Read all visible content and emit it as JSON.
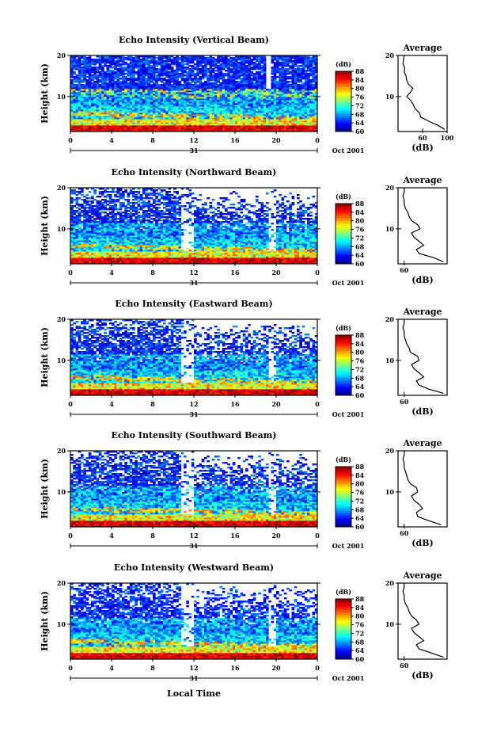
{
  "figure": {
    "xaxis_title": "Local Time",
    "date_label": "Oct 2001",
    "day_label": "31"
  },
  "chart_data": [
    {
      "type": "heatmap",
      "title": "Echo Intensity (Vertical Beam)",
      "ylabel": "Height (km)",
      "xlabel": "Local Time",
      "x_range": [
        0,
        24
      ],
      "x_ticks": [
        "0",
        "4",
        "8",
        "12",
        "16",
        "20",
        "0"
      ],
      "y_range": [
        1.5,
        20
      ],
      "y_ticks": [
        "10",
        "20"
      ],
      "colorbar": {
        "label": "(dB)",
        "range": [
          60,
          88
        ],
        "ticks": [
          "88",
          "84",
          "80",
          "76",
          "72",
          "68",
          "64",
          "60"
        ]
      },
      "profile": {
        "title": "Average",
        "xlabel": "(dB)",
        "x_range": [
          20,
          100
        ],
        "x_ticks": [
          "60",
          "100"
        ],
        "y_ticks": [
          "10",
          "20"
        ],
        "heights": [
          2,
          3,
          4,
          5,
          6,
          7,
          8,
          9,
          10,
          11,
          12,
          13,
          14,
          15,
          16,
          17,
          18,
          19,
          20
        ],
        "values": [
          96,
          85,
          70,
          57,
          55,
          48,
          45,
          41,
          34,
          40,
          44,
          37,
          34,
          33,
          30,
          31,
          28,
          29,
          30
        ]
      }
    },
    {
      "type": "heatmap",
      "title": "Echo Intensity (Northward Beam)",
      "ylabel": "Height (km)",
      "xlabel": "Local Time",
      "x_range": [
        0,
        24
      ],
      "x_ticks": [
        "0",
        "4",
        "8",
        "12",
        "16",
        "20",
        "0"
      ],
      "y_range": [
        1.5,
        20
      ],
      "y_ticks": [
        "10",
        "20"
      ],
      "colorbar": {
        "label": "(dB)",
        "range": [
          60,
          88
        ],
        "ticks": [
          "88",
          "84",
          "80",
          "76",
          "72",
          "68",
          "64",
          "60"
        ]
      },
      "profile": {
        "title": "Average",
        "xlabel": "(dB)",
        "x_range": [
          55,
          95
        ],
        "x_ticks": [
          "60"
        ],
        "y_ticks": [
          "10",
          "20"
        ],
        "heights": [
          2,
          3,
          4,
          5,
          6,
          7,
          8,
          9,
          10,
          11,
          12,
          13,
          14,
          15,
          16,
          17,
          18,
          19,
          20
        ],
        "values": [
          92,
          84,
          72,
          70,
          76,
          72,
          68,
          66,
          73,
          71,
          66,
          64,
          63,
          61,
          60,
          60,
          59,
          60,
          60
        ]
      }
    },
    {
      "type": "heatmap",
      "title": "Echo Intensity (Eastward Beam)",
      "ylabel": "Height (km)",
      "xlabel": "Local Time",
      "x_range": [
        0,
        24
      ],
      "x_ticks": [
        "0",
        "4",
        "8",
        "12",
        "16",
        "20",
        "0"
      ],
      "y_range": [
        1.5,
        20
      ],
      "y_ticks": [
        "10",
        "20"
      ],
      "colorbar": {
        "label": "(dB)",
        "range": [
          60,
          88
        ],
        "ticks": [
          "88",
          "84",
          "80",
          "76",
          "72",
          "68",
          "64",
          "60"
        ]
      },
      "profile": {
        "title": "Average",
        "xlabel": "(dB)",
        "x_range": [
          55,
          95
        ],
        "x_ticks": [
          "60"
        ],
        "y_ticks": [
          "10",
          "20"
        ],
        "heights": [
          2,
          3,
          4,
          5,
          6,
          7,
          8,
          9,
          10,
          11,
          12,
          13,
          14,
          15,
          16,
          17,
          18,
          19,
          20
        ],
        "values": [
          92,
          80,
          72,
          70,
          76,
          72,
          68,
          66,
          72,
          71,
          65,
          64,
          62,
          61,
          60,
          60,
          59,
          60,
          60
        ]
      }
    },
    {
      "type": "heatmap",
      "title": "Echo Intensity (Southward Beam)",
      "ylabel": "Height (km)",
      "xlabel": "Local Time",
      "x_range": [
        0,
        24
      ],
      "x_ticks": [
        "0",
        "4",
        "8",
        "12",
        "16",
        "20",
        "0"
      ],
      "y_range": [
        1.5,
        20
      ],
      "y_ticks": [
        "10",
        "20"
      ],
      "colorbar": {
        "label": "(dB)",
        "range": [
          60,
          88
        ],
        "ticks": [
          "88",
          "84",
          "80",
          "76",
          "72",
          "68",
          "64",
          "60"
        ]
      },
      "profile": {
        "title": "Average",
        "xlabel": "(dB)",
        "x_range": [
          55,
          95
        ],
        "x_ticks": [
          "60"
        ],
        "y_ticks": [
          "10",
          "20"
        ],
        "heights": [
          2,
          3,
          4,
          5,
          6,
          7,
          8,
          9,
          10,
          11,
          12,
          13,
          14,
          15,
          16,
          17,
          18,
          19,
          20
        ],
        "values": [
          90,
          80,
          71,
          70,
          75,
          72,
          68,
          66,
          71,
          70,
          65,
          63,
          62,
          61,
          60,
          60,
          59,
          60,
          60
        ]
      }
    },
    {
      "type": "heatmap",
      "title": "Echo Intensity (Westward Beam)",
      "ylabel": "Height (km)",
      "xlabel": "Local Time",
      "x_range": [
        0,
        24
      ],
      "x_ticks": [
        "0",
        "4",
        "8",
        "12",
        "16",
        "20",
        "0"
      ],
      "y_range": [
        1.5,
        20
      ],
      "y_ticks": [
        "10",
        "20"
      ],
      "colorbar": {
        "label": "(dB)",
        "range": [
          60,
          88
        ],
        "ticks": [
          "88",
          "84",
          "80",
          "76",
          "72",
          "68",
          "64",
          "60"
        ]
      },
      "profile": {
        "title": "Average",
        "xlabel": "(dB)",
        "x_range": [
          55,
          95
        ],
        "x_ticks": [
          "60"
        ],
        "y_ticks": [
          "10",
          "20"
        ],
        "heights": [
          2,
          3,
          4,
          5,
          6,
          7,
          8,
          9,
          10,
          11,
          12,
          13,
          14,
          15,
          16,
          17,
          18,
          19,
          20
        ],
        "values": [
          92,
          82,
          72,
          70,
          76,
          72,
          68,
          66,
          72,
          70,
          66,
          64,
          63,
          61,
          60,
          60,
          59,
          60,
          60
        ]
      }
    }
  ]
}
